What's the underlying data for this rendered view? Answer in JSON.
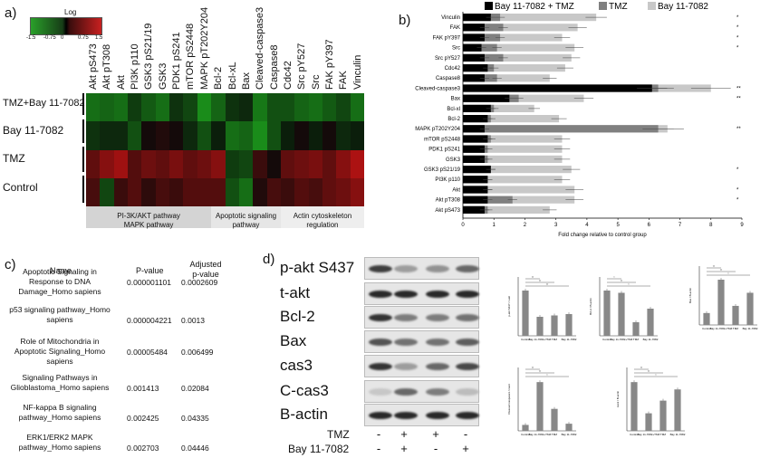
{
  "panels": {
    "a": "a)",
    "b": "b)",
    "c": "c)",
    "d": "d)"
  },
  "heatmap": {
    "legend_title": "Log",
    "legend_ticks": [
      "-1.5",
      "-0.75",
      "0",
      "0.75",
      "1.5"
    ],
    "columns": [
      "Akt pS473",
      "Akt pT308",
      "Akt",
      "PI3K p110",
      "GSK3 pS21/19",
      "GSK3",
      "PDK1 pS241",
      "mTOR pS2448",
      "MAPK pT202Y204",
      "Bcl-2",
      "Bcl-xL",
      "Bax",
      "Cleaved-caspase3",
      "Caspase8",
      "Cdc42",
      "Src pY527",
      "Src",
      "FAK pY397",
      "FAK",
      "Vinculin"
    ],
    "rows": [
      "TMZ+Bay 11-7082",
      "Bay 11-7082",
      "TMZ",
      "Control"
    ],
    "values": [
      [
        -0.9,
        -0.8,
        -0.9,
        -0.4,
        -0.7,
        -0.9,
        -0.3,
        -0.5,
        -1.2,
        -0.8,
        -0.3,
        -0.2,
        -1.0,
        -0.6,
        -0.6,
        -0.8,
        -0.9,
        -0.7,
        -0.5,
        -0.9
      ],
      [
        -0.3,
        -0.2,
        -0.2,
        -0.6,
        0.0,
        0.1,
        0.0,
        -0.2,
        -0.6,
        -0.1,
        -0.9,
        -0.8,
        -1.2,
        -0.6,
        -0.1,
        0.0,
        -0.1,
        0.0,
        -0.2,
        -0.1
      ],
      [
        0.6,
        0.9,
        1.1,
        0.5,
        0.7,
        0.6,
        0.8,
        0.6,
        0.7,
        0.9,
        -0.4,
        -0.5,
        0.3,
        0.0,
        0.6,
        0.7,
        0.8,
        0.6,
        0.9,
        1.2
      ],
      [
        0.4,
        -0.5,
        0.3,
        0.5,
        0.2,
        0.4,
        0.3,
        0.5,
        0.5,
        0.5,
        -0.6,
        -0.9,
        0.1,
        0.4,
        0.3,
        0.5,
        0.4,
        0.6,
        0.7,
        0.9
      ]
    ],
    "groups": [
      {
        "label": "PI-3K/AKT pathway\nMAPK pathway",
        "start": 0,
        "end": 9
      },
      {
        "label": "Apoptotic signaling\npathway",
        "start": 9,
        "end": 14
      },
      {
        "label": "Actin cytoskeleton\nregulation",
        "start": 14,
        "end": 20
      }
    ]
  },
  "chart_data": [
    {
      "type": "bar",
      "orientation": "horizontal",
      "categories": [
        "Vinculin",
        "FAK",
        "FAK pY397",
        "Src",
        "Src pY527",
        "Cdc42",
        "Caspase8",
        "Cleaved-caspase3",
        "Bax",
        "Bcl-xl",
        "Bcl-2",
        "MAPK pT202Y204",
        "mTOR pS2448",
        "PDK1 pS241",
        "GSK3",
        "GSK3 pS21/19",
        "PI3K p110",
        "Akt",
        "Akt pT308",
        "Akt pS473"
      ],
      "series": [
        {
          "name": "Bay 11-7082 + TMZ",
          "color": "#000000",
          "values": [
            0.9,
            0.7,
            0.7,
            0.6,
            0.7,
            0.8,
            0.7,
            6.1,
            1.5,
            0.9,
            0.8,
            0.7,
            0.8,
            0.7,
            0.7,
            0.9,
            0.8,
            0.8,
            0.8,
            0.7
          ]
        },
        {
          "name": "TMZ",
          "color": "#808080",
          "values": [
            1.2,
            1.3,
            1.2,
            1.1,
            1.3,
            1.0,
            1.1,
            6.3,
            1.8,
            1.0,
            0.9,
            6.3,
            0.9,
            0.8,
            0.8,
            0.9,
            0.8,
            0.8,
            1.6,
            0.8
          ]
        },
        {
          "name": "Bay 11-7082",
          "color": "#c8c8c8",
          "values": [
            4.3,
            3.7,
            3.2,
            3.6,
            3.5,
            3.3,
            2.8,
            8.0,
            3.9,
            2.3,
            3.1,
            6.6,
            3.2,
            3.2,
            3.2,
            3.5,
            3.2,
            3.6,
            3.6,
            2.8
          ]
        }
      ],
      "significance": [
        "*",
        "*",
        "*",
        "*",
        "",
        "",
        "",
        "**",
        "**",
        "",
        "",
        "**",
        "",
        "",
        "",
        "*",
        "",
        "*",
        "*",
        ""
      ],
      "xlabel": "Fold change relative to control group",
      "xlim": [
        0,
        9
      ],
      "xticks": [
        "0",
        "1",
        "2",
        "3",
        "4",
        "5",
        "6",
        "7",
        "8",
        "9"
      ],
      "legend_position": "top"
    },
    {
      "type": "bar",
      "title": "p-akt S437 / t-akt",
      "categories": [
        "Control",
        "Bay 11-7082+TMZ",
        "TMZ",
        "Bay 11-7082"
      ],
      "values": [
        1.0,
        0.42,
        0.45,
        0.48
      ],
      "significance": [
        "**",
        "**",
        "**"
      ]
    },
    {
      "type": "bar",
      "title": "Bcl-2 / B-actin",
      "categories": [
        "Control",
        "Bay 11-7082+TMZ",
        "TMZ",
        "Bay 11-7082"
      ],
      "values": [
        1.0,
        0.95,
        0.3,
        0.6
      ],
      "significance": [
        "*",
        "**",
        "*"
      ]
    },
    {
      "type": "bar",
      "title": "Bax / B-actin",
      "categories": [
        "Control",
        "Bay 11-7082+TMZ",
        "TMZ",
        "Bay 11-7082"
      ],
      "values": [
        1.0,
        3.8,
        1.6,
        2.7
      ],
      "significance": [
        "**",
        "**",
        "*"
      ]
    },
    {
      "type": "bar",
      "title": "Cleaved caspase3 / cas3",
      "categories": [
        "Control",
        "Bay 11-7082+TMZ",
        "TMZ",
        "Bay 11-7082"
      ],
      "values": [
        1.0,
        8.2,
        3.7,
        1.2
      ],
      "significance": [
        "**",
        "**",
        "*"
      ]
    },
    {
      "type": "bar",
      "title": "cas3 / B-actin",
      "categories": [
        "Control",
        "Bay 11-7082+TMZ",
        "TMZ",
        "Bay 11-7082"
      ],
      "values": [
        1.0,
        0.36,
        0.62,
        0.85
      ],
      "significance": [
        "**",
        "**",
        "*"
      ]
    }
  ],
  "enrichment_table": {
    "headers": [
      "Name",
      "P-value",
      "Adjusted\np-value"
    ],
    "rows": [
      [
        "Apoptotic Signaling in Response to DNA Damage_Homo sapiens",
        "0.000001101",
        "0.0002609"
      ],
      [
        "p53 signaling pathway_Homo sapiens",
        "0.000004221",
        "0.0013"
      ],
      [
        "Role of Mitochondria in Apoptotic Signaling_Homo sapiens",
        "0.00005484",
        "0.006499"
      ],
      [
        "Signaling Pathways in Glioblastoma_Homo sapiens",
        "0.001413",
        "0.02084"
      ],
      [
        "NF-kappa B signaling pathway_Homo sapiens",
        "0.002425",
        "0.04335"
      ],
      [
        "ERK1/ERK2 MAPK pathway_Homo sapiens",
        "0.002703",
        "0.04446"
      ]
    ]
  },
  "western_blot": {
    "labels": [
      "p-akt S437",
      "t-akt",
      "Bcl-2",
      "Bax",
      "cas3",
      "C-cas3",
      "B-actin"
    ],
    "tmz_label": "TMZ",
    "bay_label": "Bay 11-7082",
    "tmz_signs": [
      "-",
      "+",
      "+",
      "-"
    ],
    "bay_signs": [
      "-",
      "+",
      "-",
      "+"
    ]
  }
}
